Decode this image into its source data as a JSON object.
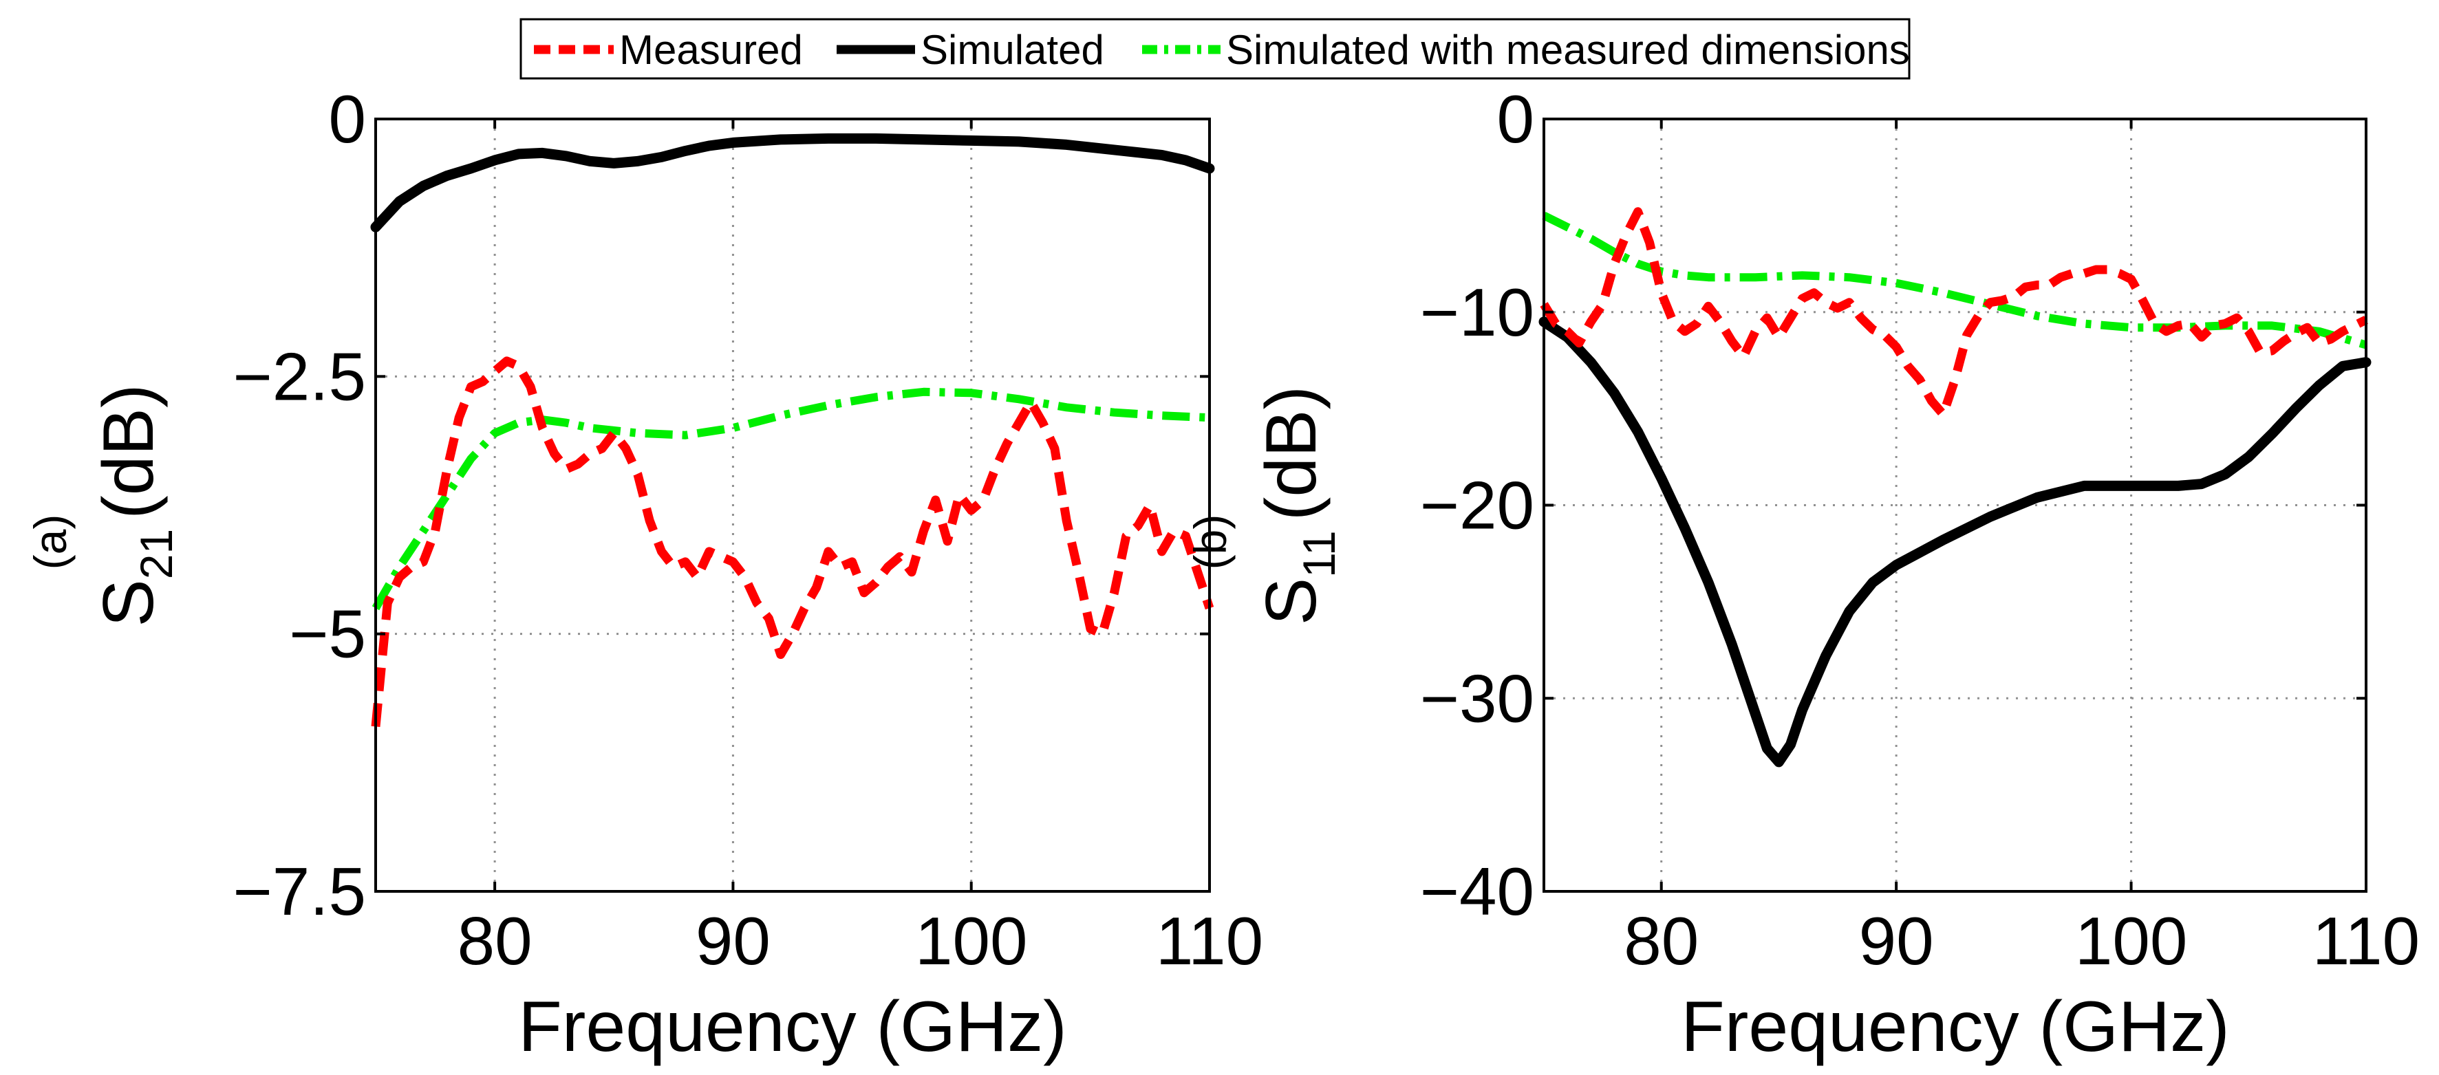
{
  "legend": {
    "entries": [
      {
        "label": "Measured",
        "color": "#ff0000",
        "style": "dashed"
      },
      {
        "label": "Simulated",
        "color": "#000000",
        "style": "solid"
      },
      {
        "label": "Simulated with measured dimensions",
        "color": "#00ee00",
        "style": "dashdot"
      }
    ]
  },
  "chart_data": [
    {
      "type": "line",
      "panel_label": "(a)",
      "ylabel_main": "S",
      "ylabel_sub": "21",
      "ylabel_unit": "(dB)",
      "xlabel": "Frequency (GHz)",
      "xlim": [
        75,
        110
      ],
      "ylim": [
        -7.5,
        0
      ],
      "xticks": [
        80,
        90,
        100,
        110
      ],
      "xtick_labels": [
        "80",
        "90",
        "100",
        "110"
      ],
      "yticks": [
        0,
        -2.5,
        -5,
        -7.5
      ],
      "ytick_labels": [
        "0",
        "−2.5",
        "−5",
        "−7.5"
      ],
      "grid": true,
      "series": [
        {
          "name": "Simulated",
          "color": "#000000",
          "style": "solid",
          "x": [
            75,
            76,
            77,
            78,
            79,
            80,
            81,
            82,
            83,
            84,
            85,
            86,
            87,
            88,
            89,
            90,
            92,
            94,
            96,
            98,
            100,
            102,
            104,
            106,
            108,
            109,
            110
          ],
          "y": [
            -1.05,
            -0.8,
            -0.65,
            -0.55,
            -0.48,
            -0.4,
            -0.34,
            -0.33,
            -0.36,
            -0.41,
            -0.43,
            -0.41,
            -0.37,
            -0.31,
            -0.26,
            -0.23,
            -0.2,
            -0.19,
            -0.19,
            -0.2,
            -0.21,
            -0.22,
            -0.25,
            -0.3,
            -0.35,
            -0.4,
            -0.48
          ]
        },
        {
          "name": "Simulated with measured dimensions",
          "color": "#00ee00",
          "style": "dashdot",
          "x": [
            75,
            76,
            77,
            78,
            79,
            80,
            81,
            82,
            83,
            84,
            86,
            88,
            90,
            92,
            94,
            96,
            98,
            100,
            102,
            104,
            106,
            108,
            110
          ],
          "y": [
            -4.75,
            -4.35,
            -4.0,
            -3.65,
            -3.3,
            -3.05,
            -2.95,
            -2.92,
            -2.95,
            -3.0,
            -3.05,
            -3.07,
            -3.0,
            -2.88,
            -2.78,
            -2.7,
            -2.65,
            -2.66,
            -2.72,
            -2.8,
            -2.85,
            -2.88,
            -2.9
          ]
        },
        {
          "name": "Measured",
          "color": "#ff0000",
          "style": "dashed",
          "x": [
            75,
            75.5,
            76,
            76.5,
            77,
            77.5,
            78,
            78.5,
            79,
            79.5,
            80,
            80.5,
            81,
            81.5,
            82,
            82.5,
            83,
            83.5,
            84,
            84.5,
            85,
            85.5,
            86,
            86.5,
            87,
            87.5,
            88,
            88.5,
            89,
            89.5,
            90,
            90.5,
            91,
            91.5,
            92,
            92.5,
            93,
            93.5,
            94,
            94.5,
            95,
            95.5,
            96,
            96.5,
            97,
            97.5,
            98,
            98.5,
            99,
            99.5,
            100,
            100.5,
            101,
            101.5,
            102,
            102.5,
            103,
            103.5,
            104,
            104.5,
            105,
            105.5,
            106,
            106.5,
            107,
            107.5,
            108,
            108.5,
            109,
            109.5,
            110
          ],
          "y": [
            -5.9,
            -4.7,
            -4.45,
            -4.35,
            -4.3,
            -4.0,
            -3.4,
            -2.9,
            -2.6,
            -2.55,
            -2.45,
            -2.35,
            -2.4,
            -2.6,
            -3.0,
            -3.25,
            -3.4,
            -3.35,
            -3.25,
            -3.2,
            -3.05,
            -3.2,
            -3.45,
            -3.9,
            -4.2,
            -4.35,
            -4.3,
            -4.45,
            -4.2,
            -4.25,
            -4.3,
            -4.45,
            -4.7,
            -4.85,
            -5.2,
            -5.0,
            -4.75,
            -4.55,
            -4.2,
            -4.35,
            -4.3,
            -4.6,
            -4.5,
            -4.35,
            -4.25,
            -4.4,
            -4.0,
            -3.7,
            -4.1,
            -3.65,
            -3.8,
            -3.7,
            -3.4,
            -3.15,
            -2.95,
            -2.75,
            -2.95,
            -3.2,
            -3.9,
            -4.4,
            -4.95,
            -5.0,
            -4.6,
            -4.05,
            -3.95,
            -3.75,
            -4.2,
            -4.0,
            -4.05,
            -4.4,
            -4.75
          ]
        }
      ]
    },
    {
      "type": "line",
      "panel_label": "(b)",
      "ylabel_main": "S",
      "ylabel_sub": "11",
      "ylabel_unit": "(dB)",
      "xlabel": "Frequency (GHz)",
      "xlim": [
        75,
        110
      ],
      "ylim": [
        -40,
        0
      ],
      "xticks": [
        80,
        90,
        100,
        110
      ],
      "xtick_labels": [
        "80",
        "90",
        "100",
        "110"
      ],
      "yticks": [
        0,
        -10,
        -20,
        -30,
        -40
      ],
      "ytick_labels": [
        "0",
        "−10",
        "−20",
        "−30",
        "−40"
      ],
      "grid": true,
      "series": [
        {
          "name": "Simulated",
          "color": "#000000",
          "style": "solid",
          "x": [
            75,
            76,
            77,
            78,
            79,
            80,
            81,
            82,
            83,
            84,
            84.5,
            85,
            85.5,
            86,
            87,
            88,
            89,
            90,
            92,
            94,
            96,
            98,
            100,
            102,
            103,
            104,
            105,
            106,
            107,
            108,
            109,
            110
          ],
          "y": [
            -10.5,
            -11.3,
            -12.6,
            -14.2,
            -16.2,
            -18.6,
            -21.2,
            -24.0,
            -27.2,
            -30.8,
            -32.6,
            -33.3,
            -32.4,
            -30.6,
            -27.8,
            -25.5,
            -24.0,
            -23.1,
            -21.8,
            -20.6,
            -19.6,
            -19.0,
            -19.0,
            -19.0,
            -18.9,
            -18.4,
            -17.5,
            -16.3,
            -15.0,
            -13.8,
            -12.8,
            -12.6
          ]
        },
        {
          "name": "Simulated with measured dimensions",
          "color": "#00ee00",
          "style": "dashdot",
          "x": [
            75,
            76,
            77,
            78,
            79,
            80,
            81,
            82,
            84,
            86,
            88,
            90,
            92,
            94,
            96,
            98,
            100,
            102,
            104,
            106,
            108,
            110
          ],
          "y": [
            -5.0,
            -5.6,
            -6.2,
            -6.9,
            -7.5,
            -7.9,
            -8.1,
            -8.2,
            -8.2,
            -8.1,
            -8.2,
            -8.5,
            -9.0,
            -9.6,
            -10.2,
            -10.6,
            -10.8,
            -10.8,
            -10.7,
            -10.7,
            -11.0,
            -11.7
          ]
        },
        {
          "name": "Measured",
          "color": "#ff0000",
          "style": "dashed",
          "x": [
            75,
            75.5,
            76,
            76.5,
            77,
            77.5,
            78,
            78.5,
            79,
            79.5,
            80,
            80.5,
            81,
            81.5,
            82,
            82.5,
            83,
            83.5,
            84,
            84.5,
            85,
            85.5,
            86,
            86.5,
            87,
            87.5,
            88,
            88.5,
            89,
            89.5,
            90,
            90.5,
            91,
            91.5,
            92,
            92.5,
            93,
            93.5,
            94,
            94.5,
            95,
            95.5,
            96,
            96.5,
            97,
            97.5,
            98,
            98.5,
            99,
            99.5,
            100,
            100.5,
            101,
            101.5,
            102,
            102.5,
            103,
            103.5,
            104,
            104.5,
            105,
            105.5,
            106,
            106.5,
            107,
            107.5,
            108,
            108.5,
            109,
            109.5,
            110
          ],
          "y": [
            -9.6,
            -10.6,
            -11.0,
            -11.6,
            -10.5,
            -9.6,
            -7.5,
            -6.0,
            -4.8,
            -6.4,
            -9.0,
            -10.5,
            -11.0,
            -10.6,
            -9.7,
            -10.5,
            -11.5,
            -12.3,
            -11.0,
            -10.3,
            -11.3,
            -10.3,
            -9.3,
            -9.0,
            -9.5,
            -9.8,
            -9.5,
            -10.3,
            -10.9,
            -11.2,
            -11.8,
            -12.8,
            -13.5,
            -14.6,
            -15.3,
            -13.5,
            -11.2,
            -10.2,
            -9.5,
            -9.4,
            -9.2,
            -8.7,
            -8.6,
            -8.6,
            -8.2,
            -8.0,
            -8.0,
            -7.8,
            -7.8,
            -8.0,
            -8.3,
            -9.4,
            -10.6,
            -11.0,
            -10.7,
            -10.6,
            -11.3,
            -10.7,
            -10.6,
            -10.3,
            -11.0,
            -12.1,
            -12.0,
            -11.5,
            -11.1,
            -10.8,
            -11.6,
            -11.4,
            -11.0,
            -10.7,
            -10.4
          ]
        }
      ]
    }
  ]
}
